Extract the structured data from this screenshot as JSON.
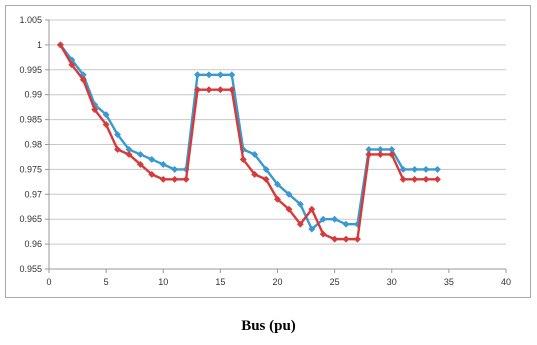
{
  "chart_data": {
    "type": "line",
    "title": "",
    "xlabel": "Bus (pu)",
    "ylabel": "",
    "xlim": [
      0,
      40
    ],
    "ylim": [
      0.955,
      1.005
    ],
    "x_ticks": [
      "0",
      "5",
      "10",
      "15",
      "20",
      "25",
      "30",
      "35",
      "40"
    ],
    "y_ticks": [
      "0.955",
      "0.96",
      "0.965",
      "0.97",
      "0.975",
      "0.98",
      "0.985",
      "0.99",
      "0.995",
      "1",
      "1.005"
    ],
    "grid": "horizontal",
    "x": [
      1,
      2,
      3,
      4,
      5,
      6,
      7,
      8,
      9,
      10,
      11,
      12,
      13,
      14,
      15,
      16,
      17,
      18,
      19,
      20,
      21,
      22,
      23,
      24,
      25,
      26,
      27,
      28,
      29,
      30,
      31,
      32,
      33,
      34
    ],
    "series": [
      {
        "color": "#3a9ad0",
        "marker": "diamond",
        "values": [
          1.0,
          0.997,
          0.994,
          0.988,
          0.986,
          0.982,
          0.979,
          0.978,
          0.977,
          0.976,
          0.975,
          0.975,
          0.994,
          0.994,
          0.994,
          0.994,
          0.979,
          0.978,
          0.975,
          0.972,
          0.97,
          0.968,
          0.963,
          0.965,
          0.965,
          0.964,
          0.964,
          0.979,
          0.979,
          0.979,
          0.975,
          0.975,
          0.975,
          0.975
        ]
      },
      {
        "color": "#d63a3a",
        "marker": "diamond",
        "values": [
          1.0,
          0.996,
          0.993,
          0.987,
          0.984,
          0.979,
          0.978,
          0.976,
          0.974,
          0.973,
          0.973,
          0.973,
          0.991,
          0.991,
          0.991,
          0.991,
          0.977,
          0.974,
          0.973,
          0.969,
          0.967,
          0.964,
          0.967,
          0.962,
          0.961,
          0.961,
          0.961,
          0.978,
          0.978,
          0.978,
          0.973,
          0.973,
          0.973,
          0.973
        ]
      }
    ]
  }
}
